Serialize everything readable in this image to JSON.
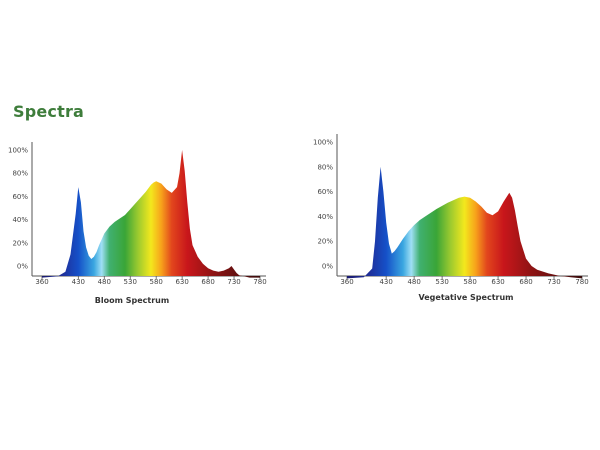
{
  "page": {
    "heading": "Spectra",
    "colors": {
      "heading": "#3e7d3b"
    }
  },
  "spectrum_colors": [
    {
      "nm": 360,
      "color": "#1a1a6e"
    },
    {
      "nm": 400,
      "color": "#1f2f9a"
    },
    {
      "nm": 430,
      "color": "#1550c8"
    },
    {
      "nm": 460,
      "color": "#3aa6e0"
    },
    {
      "nm": 475,
      "color": "#9fdff5"
    },
    {
      "nm": 490,
      "color": "#40b070"
    },
    {
      "nm": 520,
      "color": "#3aa537"
    },
    {
      "nm": 545,
      "color": "#9cca2f"
    },
    {
      "nm": 570,
      "color": "#f3e81d"
    },
    {
      "nm": 590,
      "color": "#f7a21b"
    },
    {
      "nm": 610,
      "color": "#e2461d"
    },
    {
      "nm": 640,
      "color": "#c8161b"
    },
    {
      "nm": 690,
      "color": "#8e1414"
    },
    {
      "nm": 780,
      "color": "#3a0c0c"
    }
  ],
  "chart_data": [
    {
      "type": "area",
      "title": "Bloom Spectrum",
      "xlim": [
        340,
        790
      ],
      "ylim": [
        0,
        100
      ],
      "x_ticks": [
        "360",
        "430",
        "480",
        "530",
        "580",
        "630",
        "680",
        "730",
        "780"
      ],
      "y_ticks": [
        "0%",
        "20%",
        "40%",
        "60%",
        "80%",
        "100%"
      ],
      "series": [
        {
          "x": [
            360,
            390,
            405,
            415,
            425,
            430,
            435,
            440,
            445,
            450,
            455,
            460,
            465,
            470,
            480,
            490,
            500,
            510,
            520,
            530,
            540,
            550,
            560,
            570,
            575,
            580,
            590,
            600,
            610,
            620,
            625,
            630,
            635,
            640,
            645,
            650,
            660,
            670,
            680,
            690,
            700,
            710,
            720,
            725,
            730,
            735,
            740,
            750,
            760,
            770,
            780
          ],
          "y": [
            -10,
            -9,
            -5,
            10,
            45,
            68,
            55,
            30,
            16,
            9,
            6,
            8,
            12,
            18,
            28,
            34,
            38,
            41,
            44,
            49,
            54,
            59,
            64,
            70,
            72,
            73,
            71,
            66,
            63,
            68,
            80,
            100,
            82,
            55,
            32,
            18,
            8,
            2,
            -2,
            -4,
            -5,
            -4,
            -2,
            0,
            -3,
            -6,
            -8,
            -9,
            -10,
            -10,
            -10
          ]
        }
      ]
    },
    {
      "type": "area",
      "title": "Vegetative Spectrum",
      "xlim": [
        340,
        790
      ],
      "ylim": [
        0,
        100
      ],
      "x_ticks": [
        "360",
        "430",
        "480",
        "530",
        "580",
        "630",
        "680",
        "730",
        "780"
      ],
      "y_ticks": [
        "0%",
        "20%",
        "40%",
        "60%",
        "80%",
        "100%"
      ],
      "series": [
        {
          "x": [
            360,
            390,
            405,
            410,
            415,
            420,
            425,
            430,
            435,
            440,
            445,
            450,
            460,
            470,
            480,
            490,
            500,
            520,
            540,
            560,
            570,
            580,
            590,
            600,
            610,
            620,
            630,
            640,
            650,
            655,
            660,
            665,
            670,
            680,
            690,
            700,
            720,
            740,
            760,
            780
          ],
          "y": [
            -10,
            -9,
            -2,
            20,
            55,
            80,
            60,
            35,
            18,
            10,
            12,
            15,
            22,
            28,
            33,
            37,
            40,
            46,
            51,
            55,
            56,
            55,
            52,
            48,
            43,
            41,
            44,
            52,
            59,
            55,
            45,
            32,
            20,
            6,
            0,
            -3,
            -6,
            -8,
            -9,
            -10
          ]
        }
      ]
    }
  ]
}
